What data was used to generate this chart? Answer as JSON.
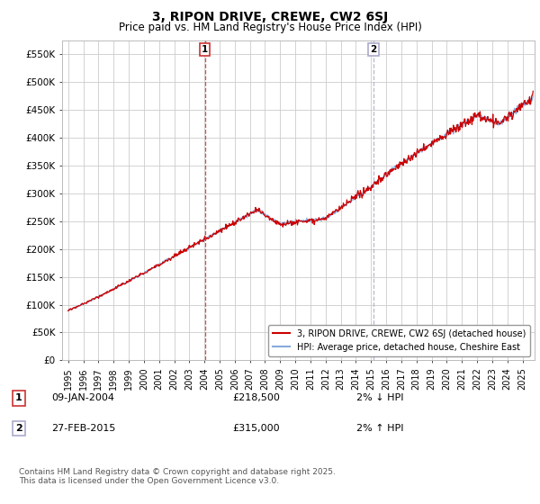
{
  "title": "3, RIPON DRIVE, CREWE, CW2 6SJ",
  "subtitle": "Price paid vs. HM Land Registry's House Price Index (HPI)",
  "ylabel_ticks": [
    "£0",
    "£50K",
    "£100K",
    "£150K",
    "£200K",
    "£250K",
    "£300K",
    "£350K",
    "£400K",
    "£450K",
    "£500K",
    "£550K"
  ],
  "ytick_values": [
    0,
    50000,
    100000,
    150000,
    200000,
    250000,
    300000,
    350000,
    400000,
    450000,
    500000,
    550000
  ],
  "ylim": [
    0,
    575000
  ],
  "xlim_start": 1994.6,
  "xlim_end": 2025.8,
  "transaction1_x": 2004.03,
  "transaction1_y": 218500,
  "transaction2_x": 2015.17,
  "transaction2_y": 315000,
  "transaction1_label": "1",
  "transaction2_label": "2",
  "legend_line1": "3, RIPON DRIVE, CREWE, CW2 6SJ (detached house)",
  "legend_line2": "HPI: Average price, detached house, Cheshire East",
  "annotation1_num": "1",
  "annotation1_date": "09-JAN-2004",
  "annotation1_price": "£218,500",
  "annotation1_hpi": "2% ↓ HPI",
  "annotation2_num": "2",
  "annotation2_date": "27-FEB-2015",
  "annotation2_price": "£315,000",
  "annotation2_hpi": "2% ↑ HPI",
  "footer": "Contains HM Land Registry data © Crown copyright and database right 2025.\nThis data is licensed under the Open Government Licence v3.0.",
  "line_color_red": "#cc0000",
  "line_color_blue": "#88aadd",
  "background_color": "#ffffff",
  "grid_color": "#cccccc",
  "vline1_color": "#cc3333",
  "vline2_color": "#aaaacc"
}
